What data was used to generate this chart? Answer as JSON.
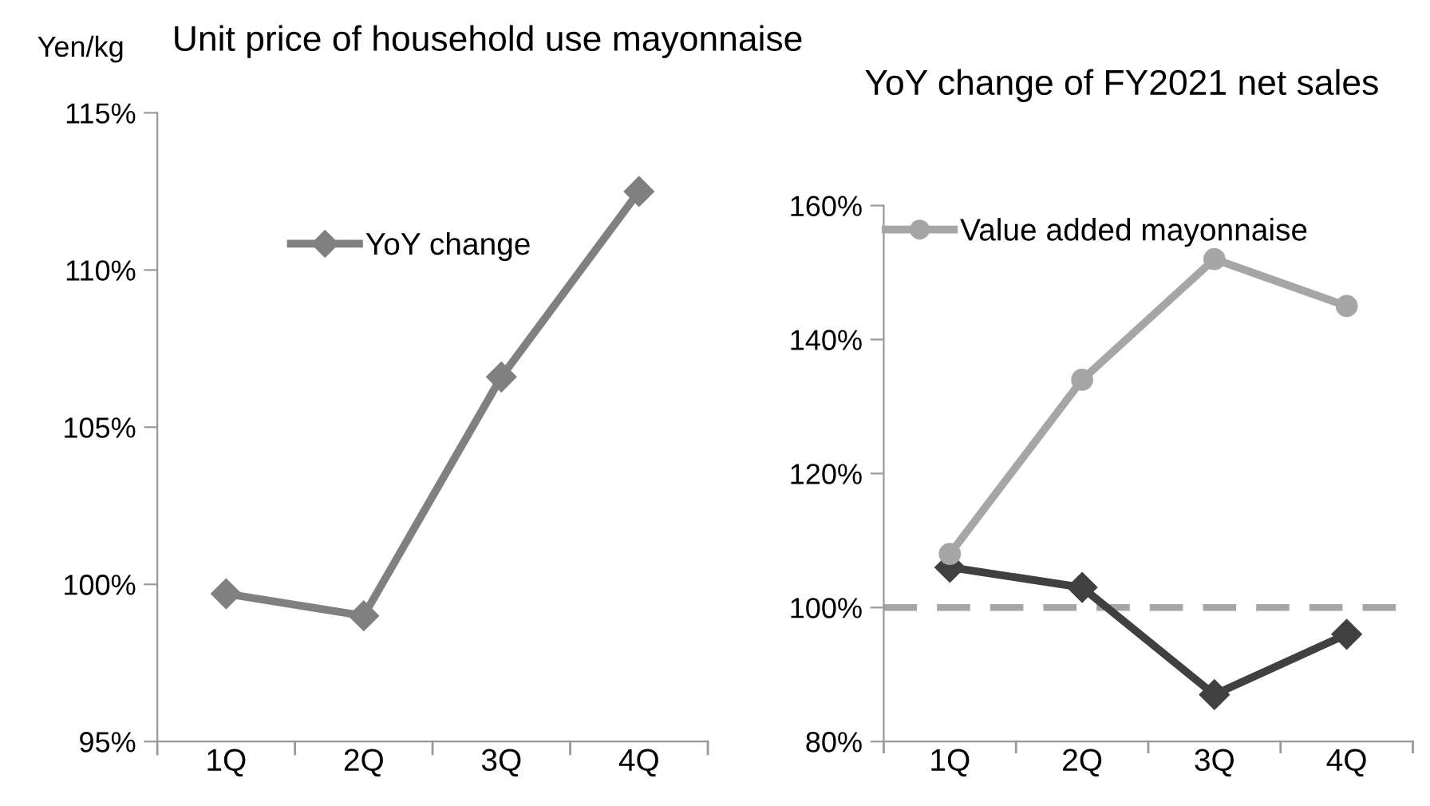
{
  "chart_data": [
    {
      "type": "line",
      "title": "Unit price of household use mayonnaise",
      "ylabel": "Yen/kg",
      "categories": [
        "1Q",
        "2Q",
        "3Q",
        "4Q"
      ],
      "series": [
        {
          "name": "YoY change",
          "color": "#808080",
          "values": [
            99.7,
            99.0,
            106.6,
            112.5
          ]
        }
      ],
      "marker": "diamond",
      "ylim": [
        95,
        115
      ],
      "yticks": [
        {
          "value": 95,
          "label": "95%"
        },
        {
          "value": 100,
          "label": "100%"
        },
        {
          "value": 105,
          "label": "105%"
        },
        {
          "value": 110,
          "label": "110%"
        },
        {
          "value": 115,
          "label": "115%"
        }
      ],
      "legend": "top",
      "grid": false
    },
    {
      "type": "line",
      "title": "YoY change of FY2021 net sales",
      "categories": [
        "1Q",
        "2Q",
        "3Q",
        "4Q"
      ],
      "series": [
        {
          "color": "#404040",
          "values": [
            106,
            103,
            87,
            96
          ],
          "marker": "diamond"
        },
        {
          "name": "Value added mayonnaise",
          "color": "#a6a6a6",
          "values": [
            108,
            134,
            152,
            145
          ],
          "marker": "circle"
        }
      ],
      "ylim": [
        80,
        160
      ],
      "yticks": [
        {
          "value": 80,
          "label": "80%"
        },
        {
          "value": 100,
          "label": "100%"
        },
        {
          "value": 120,
          "label": "120%"
        },
        {
          "value": 140,
          "label": "140%"
        },
        {
          "value": 160,
          "label": "160%"
        }
      ],
      "ref_lines": [
        {
          "axis": "y",
          "value": 100,
          "color": "#a6a6a6",
          "line_style": "dashed"
        }
      ],
      "legend": "top",
      "grid": false
    }
  ]
}
